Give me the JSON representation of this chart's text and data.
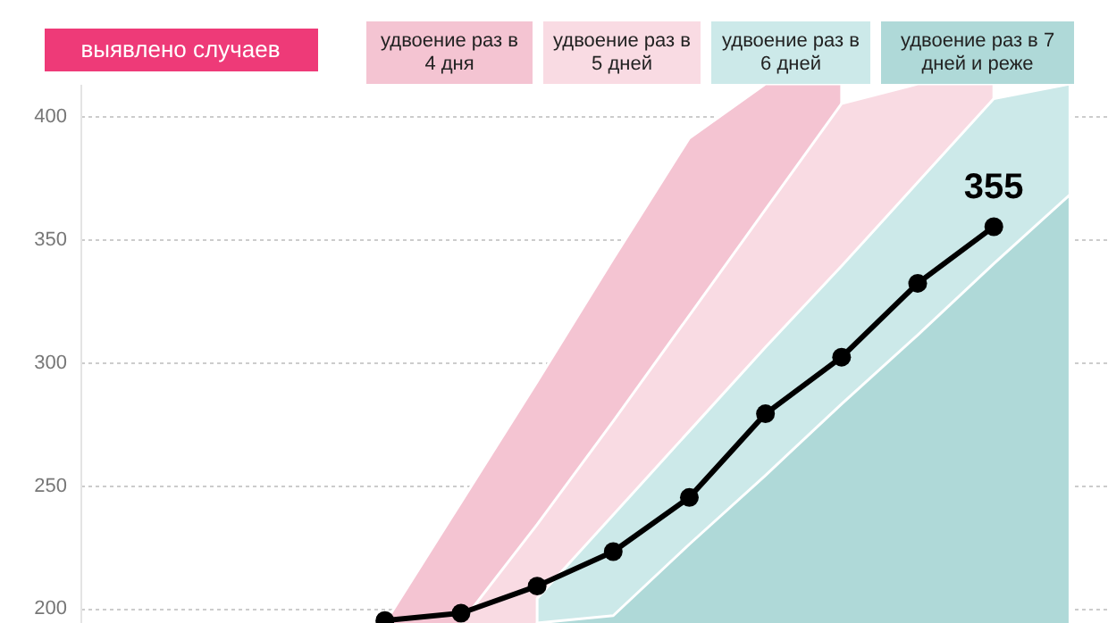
{
  "chart_data": {
    "type": "line",
    "ylabel": "выявлено случаев",
    "categories": [
      null,
      null,
      null,
      null,
      null,
      null,
      null,
      null,
      null,
      null,
      null,
      null,
      null,
      null
    ],
    "ylim": [
      194,
      413
    ],
    "yticks": [
      200,
      250,
      300,
      350,
      400
    ],
    "grid": "y",
    "legend": "top",
    "tick_labels": "y",
    "series": [
      {
        "name": "удвоение раз в 4 дня",
        "type": "area",
        "color": "#f4c4d2",
        "values": [
          null,
          null,
          null,
          null,
          194,
          243,
          292,
          342,
          391,
          413,
          413,
          null,
          null,
          null
        ]
      },
      {
        "name": "удвоение раз в 5 дней",
        "type": "area",
        "color": "#f9dbe3",
        "values": [
          null,
          null,
          null,
          null,
          null,
          194,
          234,
          276,
          319,
          362,
          405,
          413,
          413,
          null
        ]
      },
      {
        "name": "удвоение раз в 6 дней",
        "type": "area",
        "color": "#cce9e9",
        "values": [
          null,
          null,
          null,
          null,
          null,
          null,
          204,
          238,
          272,
          306,
          339,
          373,
          407,
          413
        ]
      },
      {
        "name": "удвоение раз в 7 дней и реже",
        "type": "area",
        "color": "#afd9d8",
        "values": [
          null,
          null,
          null,
          null,
          null,
          null,
          194,
          197,
          226,
          254,
          283,
          311,
          340,
          368
        ]
      },
      {
        "marker": "circle",
        "color": "#000000",
        "values": [
          null,
          null,
          null,
          null,
          195,
          198,
          209,
          223,
          245,
          279,
          302,
          332,
          355,
          null
        ],
        "value_labels": [
          null,
          null,
          null,
          null,
          null,
          null,
          null,
          null,
          null,
          null,
          null,
          null,
          "355",
          null
        ]
      }
    ]
  }
}
